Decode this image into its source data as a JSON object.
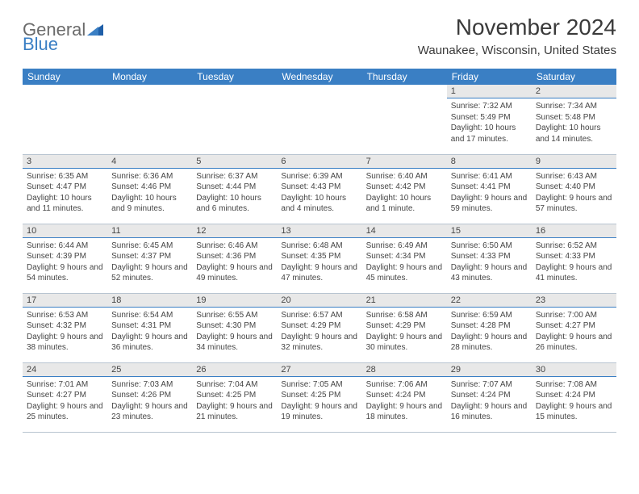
{
  "logo": {
    "word1": "General",
    "word2": "Blue"
  },
  "title": "November 2024",
  "location": "Waunakee, Wisconsin, United States",
  "colors": {
    "header_bg": "#3a7fc4",
    "header_fg": "#ffffff",
    "daynum_bg": "#e8e8e8",
    "daynum_border": "#3a7fc4",
    "text": "#454545",
    "logo_gray": "#6b6b6b",
    "logo_blue": "#3a7fc4"
  },
  "typography": {
    "title_fontsize": 28,
    "location_fontsize": 15,
    "dayhdr_fontsize": 12,
    "daynum_fontsize": 11,
    "body_fontsize": 10
  },
  "day_headers": [
    "Sunday",
    "Monday",
    "Tuesday",
    "Wednesday",
    "Thursday",
    "Friday",
    "Saturday"
  ],
  "weeks": [
    [
      null,
      null,
      null,
      null,
      null,
      {
        "n": "1",
        "sr": "7:32 AM",
        "ss": "5:49 PM",
        "dl": "10 hours and 17 minutes."
      },
      {
        "n": "2",
        "sr": "7:34 AM",
        "ss": "5:48 PM",
        "dl": "10 hours and 14 minutes."
      }
    ],
    [
      {
        "n": "3",
        "sr": "6:35 AM",
        "ss": "4:47 PM",
        "dl": "10 hours and 11 minutes."
      },
      {
        "n": "4",
        "sr": "6:36 AM",
        "ss": "4:46 PM",
        "dl": "10 hours and 9 minutes."
      },
      {
        "n": "5",
        "sr": "6:37 AM",
        "ss": "4:44 PM",
        "dl": "10 hours and 6 minutes."
      },
      {
        "n": "6",
        "sr": "6:39 AM",
        "ss": "4:43 PM",
        "dl": "10 hours and 4 minutes."
      },
      {
        "n": "7",
        "sr": "6:40 AM",
        "ss": "4:42 PM",
        "dl": "10 hours and 1 minute."
      },
      {
        "n": "8",
        "sr": "6:41 AM",
        "ss": "4:41 PM",
        "dl": "9 hours and 59 minutes."
      },
      {
        "n": "9",
        "sr": "6:43 AM",
        "ss": "4:40 PM",
        "dl": "9 hours and 57 minutes."
      }
    ],
    [
      {
        "n": "10",
        "sr": "6:44 AM",
        "ss": "4:39 PM",
        "dl": "9 hours and 54 minutes."
      },
      {
        "n": "11",
        "sr": "6:45 AM",
        "ss": "4:37 PM",
        "dl": "9 hours and 52 minutes."
      },
      {
        "n": "12",
        "sr": "6:46 AM",
        "ss": "4:36 PM",
        "dl": "9 hours and 49 minutes."
      },
      {
        "n": "13",
        "sr": "6:48 AM",
        "ss": "4:35 PM",
        "dl": "9 hours and 47 minutes."
      },
      {
        "n": "14",
        "sr": "6:49 AM",
        "ss": "4:34 PM",
        "dl": "9 hours and 45 minutes."
      },
      {
        "n": "15",
        "sr": "6:50 AM",
        "ss": "4:33 PM",
        "dl": "9 hours and 43 minutes."
      },
      {
        "n": "16",
        "sr": "6:52 AM",
        "ss": "4:33 PM",
        "dl": "9 hours and 41 minutes."
      }
    ],
    [
      {
        "n": "17",
        "sr": "6:53 AM",
        "ss": "4:32 PM",
        "dl": "9 hours and 38 minutes."
      },
      {
        "n": "18",
        "sr": "6:54 AM",
        "ss": "4:31 PM",
        "dl": "9 hours and 36 minutes."
      },
      {
        "n": "19",
        "sr": "6:55 AM",
        "ss": "4:30 PM",
        "dl": "9 hours and 34 minutes."
      },
      {
        "n": "20",
        "sr": "6:57 AM",
        "ss": "4:29 PM",
        "dl": "9 hours and 32 minutes."
      },
      {
        "n": "21",
        "sr": "6:58 AM",
        "ss": "4:29 PM",
        "dl": "9 hours and 30 minutes."
      },
      {
        "n": "22",
        "sr": "6:59 AM",
        "ss": "4:28 PM",
        "dl": "9 hours and 28 minutes."
      },
      {
        "n": "23",
        "sr": "7:00 AM",
        "ss": "4:27 PM",
        "dl": "9 hours and 26 minutes."
      }
    ],
    [
      {
        "n": "24",
        "sr": "7:01 AM",
        "ss": "4:27 PM",
        "dl": "9 hours and 25 minutes."
      },
      {
        "n": "25",
        "sr": "7:03 AM",
        "ss": "4:26 PM",
        "dl": "9 hours and 23 minutes."
      },
      {
        "n": "26",
        "sr": "7:04 AM",
        "ss": "4:25 PM",
        "dl": "9 hours and 21 minutes."
      },
      {
        "n": "27",
        "sr": "7:05 AM",
        "ss": "4:25 PM",
        "dl": "9 hours and 19 minutes."
      },
      {
        "n": "28",
        "sr": "7:06 AM",
        "ss": "4:24 PM",
        "dl": "9 hours and 18 minutes."
      },
      {
        "n": "29",
        "sr": "7:07 AM",
        "ss": "4:24 PM",
        "dl": "9 hours and 16 minutes."
      },
      {
        "n": "30",
        "sr": "7:08 AM",
        "ss": "4:24 PM",
        "dl": "9 hours and 15 minutes."
      }
    ]
  ],
  "labels": {
    "sunrise": "Sunrise:",
    "sunset": "Sunset:",
    "daylight": "Daylight:"
  }
}
